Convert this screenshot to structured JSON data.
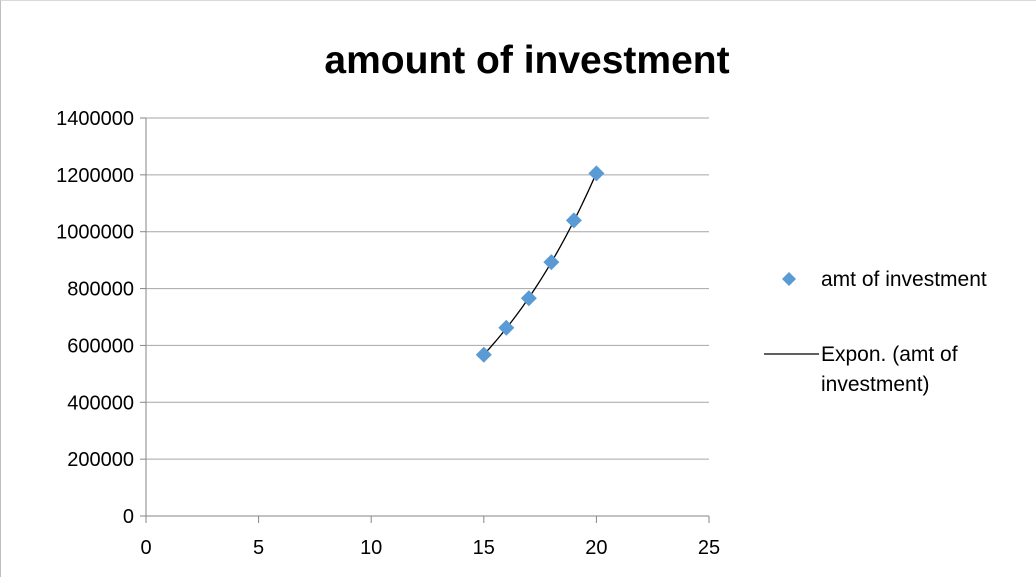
{
  "chart_data": {
    "type": "scatter",
    "title": "amount of investment",
    "xlabel": "",
    "ylabel": "",
    "xlim": [
      0,
      25
    ],
    "ylim": [
      0,
      1400000
    ],
    "x_ticks": [
      "0",
      "5",
      "10",
      "15",
      "20",
      "25"
    ],
    "y_ticks": [
      "0",
      "200000",
      "400000",
      "600000",
      "800000",
      "1000000",
      "1200000",
      "1400000"
    ],
    "grid": "horizontal",
    "legend_position": "right",
    "series": [
      {
        "name": "amt of investment",
        "marker": "diamond",
        "color": "#5B9BD5",
        "x": [
          15,
          16,
          17,
          18,
          19,
          20
        ],
        "y": [
          567000,
          662000,
          766000,
          893000,
          1040000,
          1205000
        ]
      }
    ],
    "trendline": {
      "name_lines": [
        "Expon. (amt of",
        "investment)"
      ],
      "type": "exponential",
      "color": "#000000"
    }
  }
}
